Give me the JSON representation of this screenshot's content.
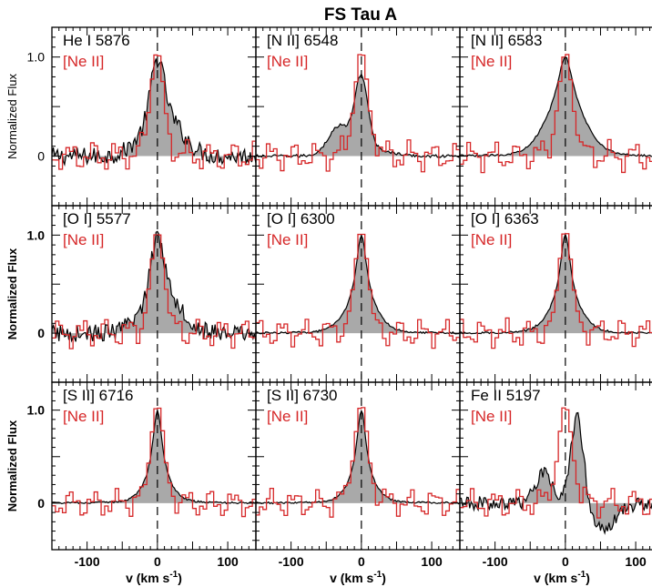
{
  "figure": {
    "title": "FS Tau A",
    "ylabel_rows": [
      "Normalized Flux",
      "Normalized Flux",
      "Normalized Flux"
    ],
    "xlabel_main": "v (km s",
    "xlabel_sup": "-1",
    "xlabel_close": ")"
  },
  "colors": {
    "ne_ii": "#d62728",
    "line_profile": "#000000",
    "fill": "#a9a9a9",
    "frame": "#000000"
  },
  "chart_data": {
    "type": "line",
    "xlim": [
      -150,
      140
    ],
    "ylim": [
      -0.5,
      1.3
    ],
    "xticks": [
      -100,
      0,
      100
    ],
    "xtick_labels": [
      "-100",
      "0",
      "100"
    ],
    "yticks": [
      0,
      1.0
    ],
    "ytick_labels": [
      "0",
      "1.0"
    ],
    "reference_series": "[Ne II]",
    "panels": [
      {
        "line": "He I 5876",
        "reference": "[Ne II]",
        "row": 0,
        "col": 0,
        "profile": "broad_noisy"
      },
      {
        "line": "[N II] 6548",
        "reference": "[Ne II]",
        "row": 0,
        "col": 1,
        "profile": "narrow_shoulder"
      },
      {
        "line": "[N II] 6583",
        "reference": "[Ne II]",
        "row": 0,
        "col": 2,
        "profile": "broad_wing"
      },
      {
        "line": "[O I] 5577",
        "reference": "[Ne II]",
        "row": 1,
        "col": 0,
        "profile": "broad_noisy"
      },
      {
        "line": "[O I] 6300",
        "reference": "[Ne II]",
        "row": 1,
        "col": 1,
        "profile": "narrow_wing"
      },
      {
        "line": "[O I] 6363",
        "reference": "[Ne II]",
        "row": 1,
        "col": 2,
        "profile": "narrow_wing"
      },
      {
        "line": "[S II] 6716",
        "reference": "[Ne II]",
        "row": 2,
        "col": 0,
        "profile": "narrow"
      },
      {
        "line": "[S II] 6730",
        "reference": "[Ne II]",
        "row": 2,
        "col": 1,
        "profile": "narrow"
      },
      {
        "line": "Fe II 5197",
        "reference": "[Ne II]",
        "row": 2,
        "col": 2,
        "profile": "redshifted_double"
      }
    ]
  }
}
